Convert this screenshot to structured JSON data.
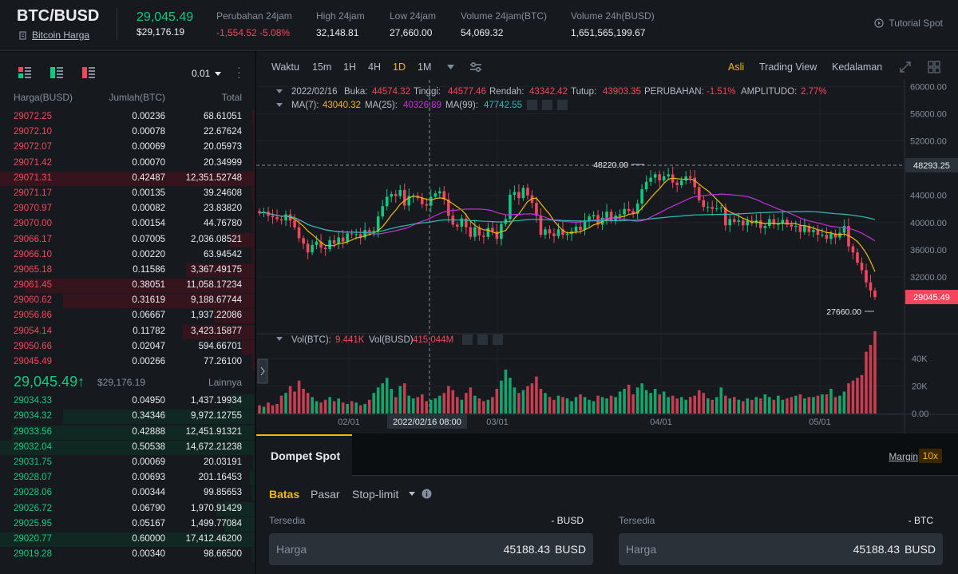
{
  "header": {
    "pair": "BTC/BUSD",
    "pair_link": "Bitcoin Harga",
    "last_price": "29,045.49",
    "last_price_usd": "$29,176.19",
    "stats": [
      {
        "label": "Perubahan 24jam",
        "value": "-1,554.52 -5.08%",
        "color": "red"
      },
      {
        "label": "High 24jam",
        "value": "32,148.81"
      },
      {
        "label": "Low 24jam",
        "value": "27,660.00"
      },
      {
        "label": "Volume 24jam(BTC)",
        "value": "54,069.32"
      },
      {
        "label": "Volume 24h(BUSD)",
        "value": "1,651,565,199.67"
      }
    ],
    "tutorial": "Tutorial Spot"
  },
  "orderbook": {
    "precision": "0.01",
    "columns": [
      "Harga(BUSD)",
      "Jumlah(BTC)",
      "Total"
    ],
    "asks": [
      {
        "price": "29072.25",
        "amount": "0.00236",
        "total": "68.61051",
        "depth": 0.01
      },
      {
        "price": "29072.10",
        "amount": "0.00078",
        "total": "22.67624",
        "depth": 0.005
      },
      {
        "price": "29072.07",
        "amount": "0.00069",
        "total": "20.05973",
        "depth": 0.005
      },
      {
        "price": "29071.42",
        "amount": "0.00070",
        "total": "20.34999",
        "depth": 0.005
      },
      {
        "price": "29071.31",
        "amount": "0.42487",
        "total": "12,351.52748",
        "depth": 1.0
      },
      {
        "price": "29071.17",
        "amount": "0.00135",
        "total": "39.24608",
        "depth": 0.01
      },
      {
        "price": "29070.97",
        "amount": "0.00082",
        "total": "23.83820",
        "depth": 0.005
      },
      {
        "price": "29070.00",
        "amount": "0.00154",
        "total": "44.76780",
        "depth": 0.01
      },
      {
        "price": "29066.17",
        "amount": "0.07005",
        "total": "2,036.08521",
        "depth": 0.1
      },
      {
        "price": "29066.10",
        "amount": "0.00220",
        "total": "63.94542",
        "depth": 0.01
      },
      {
        "price": "29065.18",
        "amount": "0.11586",
        "total": "3,367.49175",
        "depth": 0.27
      },
      {
        "price": "29061.45",
        "amount": "0.38051",
        "total": "11,058.17234",
        "depth": 0.9
      },
      {
        "price": "29060.62",
        "amount": "0.31619",
        "total": "9,188.67744",
        "depth": 0.75
      },
      {
        "price": "29056.86",
        "amount": "0.06667",
        "total": "1,937.22086",
        "depth": 0.16
      },
      {
        "price": "29054.14",
        "amount": "0.11782",
        "total": "3,423.15877",
        "depth": 0.28
      },
      {
        "price": "29050.66",
        "amount": "0.02047",
        "total": "594.66701",
        "depth": 0.05
      },
      {
        "price": "29045.49",
        "amount": "0.00266",
        "total": "77.26100",
        "depth": 0.01
      }
    ],
    "mid_price": "29,045.49",
    "mid_arrow": "↑",
    "mid_usd": "$29,176.19",
    "more": "Lainnya",
    "bids": [
      {
        "price": "29034.33",
        "amount": "0.04950",
        "total": "1,437.19934",
        "depth": 0.1
      },
      {
        "price": "29034.32",
        "amount": "0.34346",
        "total": "9,972.12755",
        "depth": 0.75
      },
      {
        "price": "29033.56",
        "amount": "0.42888",
        "total": "12,451.91321",
        "depth": 0.95
      },
      {
        "price": "29032.04",
        "amount": "0.50538",
        "total": "14,672.21238",
        "depth": 1.0
      },
      {
        "price": "29031.75",
        "amount": "0.00069",
        "total": "20.03191",
        "depth": 0.005
      },
      {
        "price": "29028.07",
        "amount": "0.00693",
        "total": "201.16453",
        "depth": 0.02
      },
      {
        "price": "29028.06",
        "amount": "0.00344",
        "total": "99.85653",
        "depth": 0.01
      },
      {
        "price": "29026.72",
        "amount": "0.06790",
        "total": "1,970.91429",
        "depth": 0.15
      },
      {
        "price": "29025.95",
        "amount": "0.05167",
        "total": "1,499.77084",
        "depth": 0.12
      },
      {
        "price": "29020.77",
        "amount": "0.60000",
        "total": "17,412.46200",
        "depth": 1.0
      },
      {
        "price": "29019.28",
        "amount": "0.00340",
        "total": "98.66500",
        "depth": 0.01
      }
    ]
  },
  "toolbar": {
    "left": [
      "Waktu",
      "15m",
      "1H",
      "4H",
      "1D",
      "1M"
    ],
    "active_interval": "1D",
    "right": [
      "Asli",
      "Trading View",
      "Kedalaman"
    ],
    "active_view": "Asli"
  },
  "chart_info": {
    "date": "2022/02/16",
    "buka_label": "Buka:",
    "buka": "44574.32",
    "tinggi_label": "Tinggi:",
    "tinggi": "44577.46",
    "rendah_label": "Rendah:",
    "rendah": "43342.42",
    "tutup_label": "Tutup:",
    "tutup": "43903.35",
    "perubahan_label": "PERUBAHAN:",
    "perubahan": "-1.51%",
    "amplitudo_label": "AMPLITUDO:",
    "amplitudo": "2.77%",
    "ma7_label": "MA(7):",
    "ma7": "43040.32",
    "ma25_label": "MA(25):",
    "ma25": "40326.89",
    "ma99_label": "MA(99):",
    "ma99": "47742.55",
    "vol_btc_label": "Vol(BTC):",
    "vol_btc": "9.441K",
    "vol_busd_label": "Vol(BUSD)",
    "vol_busd": "415.044M",
    "crosshair_date": "2022/02/16 08:00",
    "current_price": "29045.49",
    "crosshair_price": "48293.25",
    "high_marker": "48220.00",
    "low_marker": "27660.00",
    "colors": {
      "up": "#0ecb81",
      "down": "#f6465d",
      "ma7": "#f0b90b",
      "ma25": "#c430d8",
      "ma99": "#2dbdb6"
    }
  },
  "chart_data": {
    "type": "candlestick",
    "y_ticks": [
      "60000.00",
      "56000.00",
      "52000.00",
      "48000.00",
      "44000.00",
      "40000.00",
      "36000.00",
      "32000.00"
    ],
    "ylim": [
      24000,
      61000
    ],
    "vol_ticks": [
      "40K",
      "20K",
      "0.00"
    ],
    "vol_max": 50000,
    "x_ticks": [
      "02/01",
      "03/01",
      "04/01",
      "05/01"
    ],
    "closes": [
      41400,
      41600,
      41000,
      40800,
      40500,
      40300,
      41200,
      40300,
      39300,
      37700,
      36900,
      35600,
      36700,
      37200,
      36300,
      36100,
      37400,
      36900,
      37800,
      37200,
      38400,
      38300,
      38300,
      37800,
      38900,
      38700,
      38800,
      40900,
      42400,
      43800,
      44200,
      43900,
      44800,
      42500,
      43900,
      43900,
      43600,
      42700,
      42500,
      43800,
      44300,
      44600,
      43400,
      41000,
      39700,
      39400,
      40600,
      39300,
      37900,
      39300,
      38100,
      37900,
      39200,
      38700,
      37600,
      39800,
      40500,
      44100,
      44500,
      43600,
      45100,
      44000,
      42900,
      41000,
      38200,
      39000,
      38400,
      38000,
      39000,
      38200,
      38300,
      38700,
      39400,
      38900,
      40300,
      40900,
      41100,
      39700,
      40700,
      41600,
      40300,
      41000,
      41200,
      42000,
      41700,
      41300,
      42800,
      44900,
      46000,
      46600,
      47100,
      46200,
      46800,
      47100,
      45900,
      45500,
      46200,
      46800,
      46600,
      45200,
      43300,
      42300,
      42300,
      42000,
      42100,
      42200,
      39600,
      40500,
      40100,
      40300,
      39600,
      40300,
      39900,
      40300,
      39200,
      39500,
      40500,
      39700,
      39800,
      40400,
      39700,
      39400,
      39500,
      38600,
      39500,
      38600,
      38900,
      38200,
      38200,
      37600,
      38400,
      37800,
      38500,
      39500,
      36500,
      35600,
      34100,
      33000,
      31200,
      30000,
      29045
    ],
    "volumes": [
      6000,
      5000,
      8000,
      6000,
      7000,
      13000,
      15000,
      20000,
      16000,
      24000,
      18000,
      15000,
      12000,
      9000,
      8000,
      10000,
      12000,
      9000,
      11000,
      8000,
      7000,
      9000,
      8000,
      6000,
      7000,
      10000,
      15000,
      19000,
      22000,
      26000,
      18000,
      12000,
      20000,
      22000,
      13000,
      11000,
      12000,
      14000,
      9000,
      10000,
      11000,
      13000,
      15000,
      20000,
      17000,
      12000,
      10000,
      15000,
      19000,
      13000,
      11000,
      9000,
      10000,
      12000,
      18000,
      24000,
      32000,
      26000,
      19000,
      15000,
      17000,
      20000,
      22000,
      27000,
      18000,
      15000,
      12000,
      10000,
      13000,
      12000,
      11000,
      9000,
      12000,
      14000,
      12000,
      10000,
      9000,
      13000,
      12000,
      11000,
      13000,
      12000,
      16000,
      18000,
      21000,
      14000,
      19000,
      22000,
      17000,
      15000,
      18000,
      14000,
      16000,
      12000,
      13000,
      11000,
      12000,
      10000,
      12000,
      13000,
      17000,
      15000,
      11000,
      10000,
      12000,
      19000,
      13000,
      11000,
      12000,
      10000,
      9000,
      11000,
      10000,
      12000,
      11000,
      14000,
      12000,
      10000,
      13000,
      10000,
      11000,
      12000,
      13000,
      14000,
      11000,
      12000,
      12000,
      13000,
      14000,
      14000,
      18000,
      12000,
      13000,
      16000,
      22000,
      24000,
      26000,
      28000,
      45000,
      50000,
      60000
    ],
    "series": [
      {
        "name": "MA(7)"
      },
      {
        "name": "MA(25)"
      },
      {
        "name": "MA(99)"
      }
    ]
  },
  "wallet": {
    "tab": "Dompet Spot",
    "margin": "Margin",
    "leverage": "10x",
    "order_tabs": [
      "Batas",
      "Pasar",
      "Stop-limit"
    ],
    "active_order_tab": "Batas",
    "buy": {
      "avail_label": "Tersedia",
      "avail_value": "- BUSD",
      "price_label": "Harga",
      "price_value": "45188.43",
      "unit": "BUSD"
    },
    "sell": {
      "avail_label": "Tersedia",
      "avail_value": "- BTC",
      "price_label": "Harga",
      "price_value": "45188.43",
      "unit": "BUSD"
    }
  }
}
